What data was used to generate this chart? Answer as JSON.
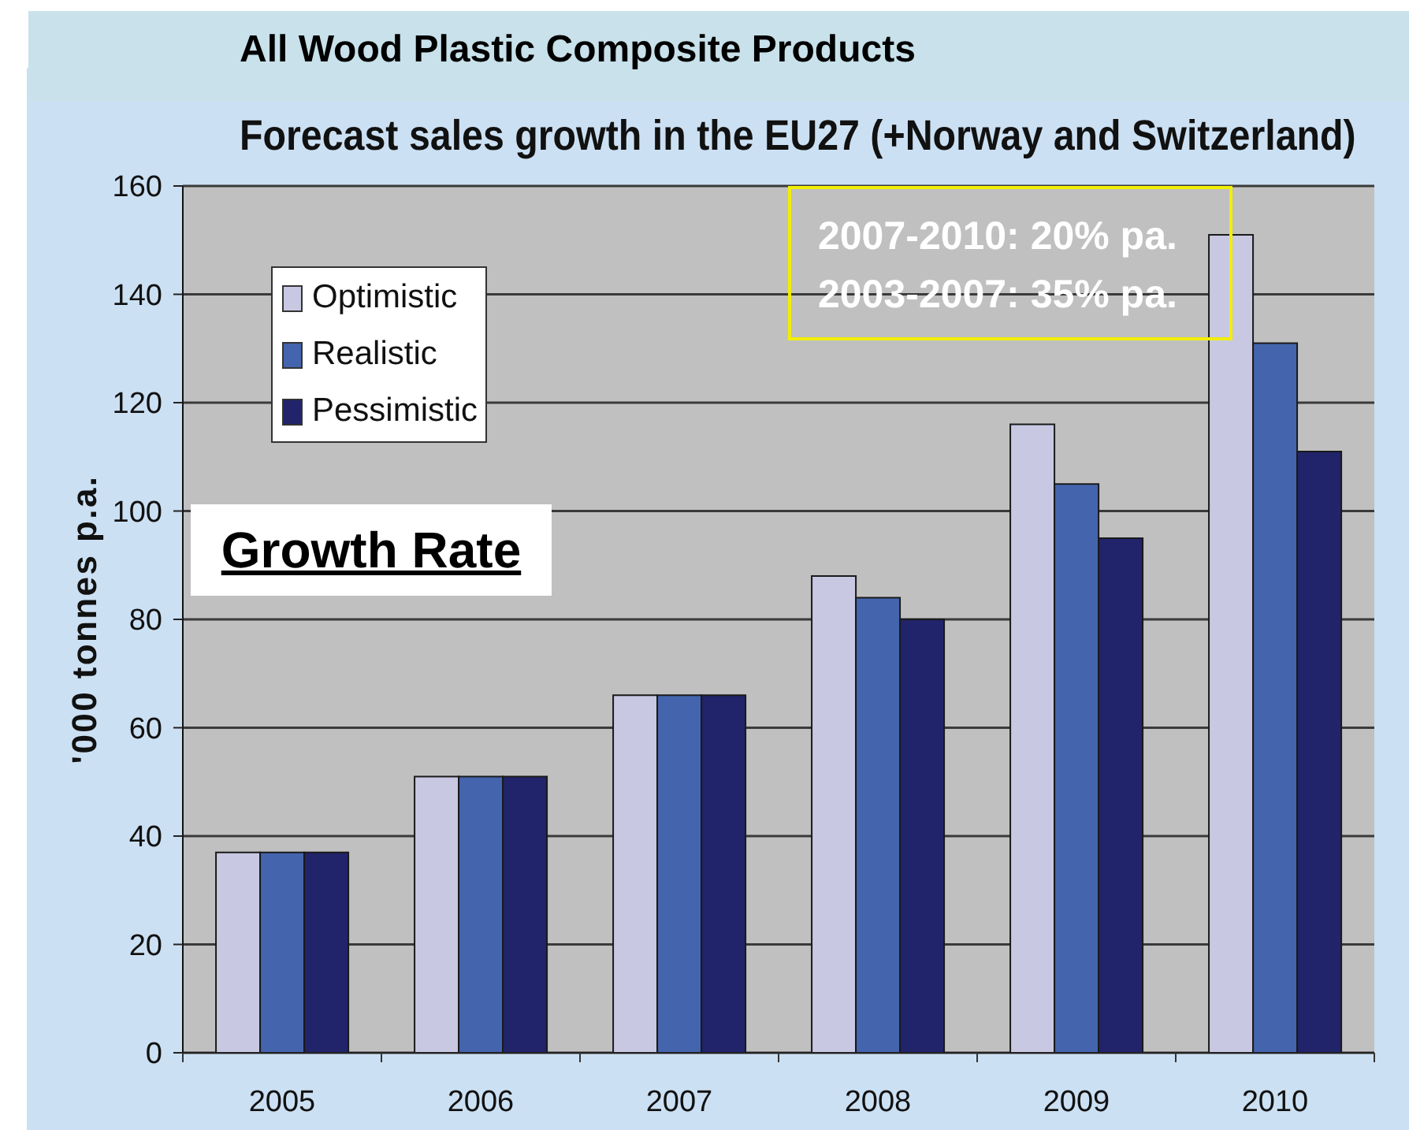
{
  "chart_data": {
    "type": "bar",
    "title": "All Wood Plastic Composite Products",
    "subtitle": "Forecast sales growth in the EU27 (+Norway and Switzerland)",
    "ylabel": "'000 tonnes p.a.",
    "annotations": [
      "2007-2010: 20% pa.",
      "2003-2007: 35% pa.",
      "Growth Rate"
    ],
    "categories": [
      "2005",
      "2006",
      "2007",
      "2008",
      "2009",
      "2010"
    ],
    "series": [
      {
        "name": "Optimistic",
        "color": "#c8c8e3",
        "values": [
          37,
          51,
          66,
          88,
          116,
          151
        ]
      },
      {
        "name": "Realistic",
        "color": "#4465ae",
        "values": [
          37,
          51,
          66,
          84,
          105,
          131
        ]
      },
      {
        "name": "Pessimistic",
        "color": "#21246a",
        "values": [
          37,
          51,
          66,
          80,
          95,
          111
        ]
      }
    ],
    "ylim": [
      0,
      160
    ],
    "yticks": [
      0,
      20,
      40,
      60,
      80,
      100,
      120,
      140,
      160
    ],
    "grid": "y",
    "legend": "top left"
  }
}
